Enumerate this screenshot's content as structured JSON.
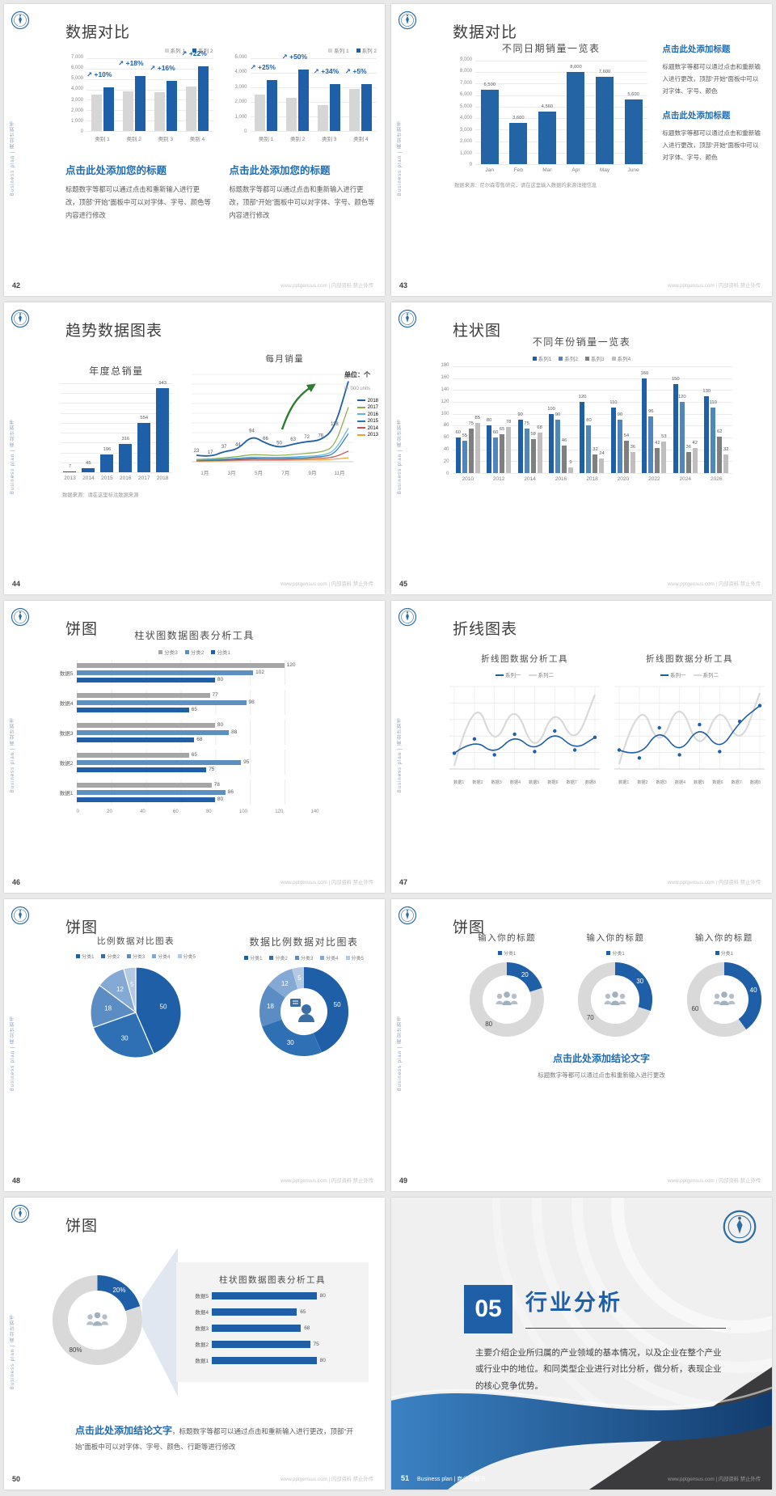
{
  "page_bg": "#e9e9e9",
  "accent_blue": "#1f5fa8",
  "footer_url": "www.pptgensus.com | 内部资料 禁止外传",
  "sidebar_text": "Business plan | 商业计划书",
  "slides": [
    {
      "page": "42",
      "title": "数据对比",
      "charts": [
        {
          "legend": [
            "系列 1",
            "系列 2"
          ],
          "yticks": [
            "7,000",
            "6,000",
            "5,000",
            "4,000",
            "3,000",
            "2,000",
            "1,000",
            "0"
          ],
          "ymax": 7000,
          "categories": [
            "类别 1",
            "类别 2",
            "类别 3",
            "类别 4"
          ],
          "percents": [
            "+10%",
            "+18%",
            "+16%",
            "+22%"
          ],
          "series": [
            {
              "name": "系列 1",
              "color": "#d6d6d6",
              "values": [
                3500,
                3800,
                3700,
                4300
              ]
            },
            {
              "name": "系列 2",
              "color": "#1f5fa8",
              "values": [
                4200,
                5300,
                4800,
                6200
              ]
            }
          ]
        },
        {
          "legend": [
            "系列 1",
            "系列 2"
          ],
          "yticks": [
            "5,000",
            "4,000",
            "3,000",
            "2,000",
            "1,000",
            "0"
          ],
          "ymax": 5000,
          "categories": [
            "类别 1",
            "类别 2",
            "类别 3",
            "类别 4"
          ],
          "percents": [
            "+25%",
            "+50%",
            "+34%",
            "+5%"
          ],
          "series": [
            {
              "name": "系列 1",
              "color": "#d6d6d6",
              "values": [
                2500,
                2300,
                1800,
                2900
              ]
            },
            {
              "name": "系列 2",
              "color": "#1f5fa8",
              "values": [
                3500,
                4200,
                3200,
                3200
              ]
            }
          ]
        }
      ],
      "blocks": [
        {
          "heading": "点击此处添加您的标题",
          "body": "标题数字等都可以通过点击和重新输入进行更改，顶部“开始”面板中可以对字体、字号、颜色等内容进行修改"
        },
        {
          "heading": "点击此处添加您的标题",
          "body": "标题数字等都可以通过点击和重新输入进行更改，顶部“开始”面板中可以对字体、字号、颜色等内容进行修改"
        }
      ]
    },
    {
      "page": "43",
      "title": "数据对比",
      "chart": {
        "title": "不同日期销量一览表",
        "yticks": [
          "9,000",
          "8,000",
          "7,000",
          "6,000",
          "5,000",
          "4,000",
          "3,000",
          "2,000",
          "1,000",
          "0"
        ],
        "ymax": 9000,
        "categories": [
          "Jan",
          "Feb",
          "Mar",
          "Apr",
          "May",
          "June"
        ],
        "labels": [
          "6,500",
          "3,600",
          "4,560",
          "8,000",
          "7,600",
          "5,600"
        ],
        "series": [
          {
            "name": "销量",
            "color": "#2464a5",
            "values": [
              6500,
              3600,
              4560,
              8000,
              7600,
              5600
            ]
          }
        ]
      },
      "footnote": "数据来源：尼尔森零售研究，请在这里输入数据的来源详细信息",
      "blocks": [
        {
          "heading": "点击此处添加标题",
          "body": "标题数字等都可以通过点击和重新输入进行更改，顶部“开始”面板中可以对字体、字号、颜色"
        },
        {
          "heading": "点击此处添加标题",
          "body": "标题数字等都可以通过点击和重新输入进行更改，顶部“开始”面板中可以对字体、字号、颜色"
        }
      ]
    },
    {
      "page": "44",
      "title": "趋势数据图表",
      "unit1": "单位：个",
      "unit2": "in '000 units",
      "footnote": "数据来源：请在这里标注数据来源",
      "left": {
        "title": "年度总销量",
        "ymax": 1000,
        "categories": [
          "2013",
          "2014",
          "2015",
          "2016",
          "2017",
          "2018"
        ],
        "labels": [
          "7",
          "45",
          "196",
          "316",
          "554",
          "943"
        ],
        "series": [
          {
            "name": "年度总销量",
            "color": "#1f5fa8",
            "values": [
              7,
              45,
              196,
              316,
              554,
              943
            ]
          }
        ]
      },
      "right": {
        "title": "每月销量",
        "ymax": 300,
        "xlabels": [
          "1月",
          "3月",
          "5月",
          "7月",
          "9月",
          "11月"
        ],
        "point_labels": [
          "23",
          "17",
          "37",
          "44",
          "94",
          "66",
          "50",
          "63",
          "72",
          "76",
          "118",
          "287"
        ],
        "arrow": true,
        "series": [
          {
            "name": "2018",
            "color": "#1f5fa8",
            "width": 1.8,
            "values": [
              23,
              17,
              37,
              44,
              94,
              66,
              50,
              63,
              72,
              76,
              118,
              287
            ]
          },
          {
            "name": "2017",
            "color": "#8aab4a",
            "values": [
              8,
              10,
              14,
              18,
              26,
              24,
              22,
              26,
              30,
              34,
              52,
              195
            ]
          },
          {
            "name": "2016",
            "color": "#5bb7d9",
            "values": [
              6,
              8,
              10,
              13,
              17,
              16,
              15,
              17,
              20,
              22,
              36,
              120
            ]
          },
          {
            "name": "2015",
            "color": "#2e75b6",
            "values": [
              5,
              6,
              8,
              10,
              13,
              12,
              12,
              13,
              15,
              17,
              26,
              100
            ]
          },
          {
            "name": "2014",
            "color": "#c0504d",
            "values": [
              3,
              4,
              5,
              7,
              9,
              8,
              8,
              9,
              10,
              12,
              16,
              38
            ]
          },
          {
            "name": "2013",
            "color": "#f0a030",
            "values": [
              2,
              3,
              3,
              4,
              5,
              5,
              5,
              6,
              6,
              7,
              9,
              14
            ]
          }
        ]
      }
    },
    {
      "page": "45",
      "title": "柱状图",
      "chart": {
        "title": "不同年份销量一览表",
        "legend": [
          "系列1",
          "系列2",
          "系列3",
          "系列4"
        ],
        "yticks": [
          "180",
          "160",
          "140",
          "120",
          "100",
          "80",
          "60",
          "40",
          "20",
          "0"
        ],
        "ymax": 180,
        "categories": [
          "2010",
          "2012",
          "2014",
          "2016",
          "2018",
          "2020",
          "2022",
          "2024",
          "2026"
        ],
        "series": [
          {
            "name": "系列1",
            "color": "#1f5fa8",
            "values": [
              60,
              80,
              90,
              100,
              120,
              110,
              160,
              150,
              130
            ]
          },
          {
            "name": "系列2",
            "color": "#4f86bb",
            "values": [
              55,
              60,
              75,
              90,
              80,
              90,
              96,
              120,
              110
            ]
          },
          {
            "name": "系列3",
            "color": "#7f7f7f",
            "values": [
              75,
              65,
              58,
              46,
              32,
              54,
              42,
              36,
              62
            ]
          },
          {
            "name": "系列4",
            "color": "#bfbfbf",
            "values": [
              85,
              78,
              68,
              9,
              24,
              36,
              53,
              42,
              32
            ]
          }
        ]
      }
    },
    {
      "page": "46",
      "title": "饼图",
      "chart": {
        "title": "柱状图数据图表分析工具",
        "xmax": 140,
        "xticks": [
          "0",
          "20",
          "40",
          "60",
          "80",
          "100",
          "120",
          "140"
        ],
        "legend": [
          {
            "label": "分类3",
            "color": "#a6a6a6"
          },
          {
            "label": "分类2",
            "color": "#5d8fc0"
          },
          {
            "label": "分类1",
            "color": "#1f5fa8"
          }
        ],
        "rows": [
          "数据5",
          "数据4",
          "数据3",
          "数据2",
          "数据1"
        ],
        "series": {
          "分类3": [
            120,
            77,
            80,
            65,
            78
          ],
          "分类2": [
            102,
            98,
            88,
            95,
            86
          ],
          "分类1": [
            80,
            65,
            68,
            75,
            80
          ]
        }
      }
    },
    {
      "page": "47",
      "title": "折线图表",
      "charts": [
        {
          "title": "折线图数据分析工具",
          "legend": [
            "系列一",
            "系列二"
          ],
          "ymax": 250,
          "yticks": [
            "250",
            "200",
            "150",
            "100",
            "50",
            "0"
          ],
          "xlabels": [
            "数据1",
            "数据2",
            "数据3",
            "数据4",
            "数据5",
            "数据6",
            "数据7",
            "数据8"
          ],
          "series": [
            {
              "name": "系列一",
              "color": "#1f5fa8",
              "marker": true,
              "width": 1.6,
              "values": [
                50,
                95,
                45,
                110,
                55,
                120,
                60,
                100
              ]
            },
            {
              "name": "系列二",
              "color": "#d9d9d9",
              "width": 2.2,
              "values": [
                10,
                245,
                60,
                215,
                40,
                200,
                70,
                235
              ]
            }
          ]
        },
        {
          "title": "折线图数据分析工具",
          "legend": [
            "系列一",
            "系列二"
          ],
          "ymax": 250,
          "yticks": [
            "250",
            "200",
            "150",
            "100",
            "50",
            "0"
          ],
          "xlabels": [
            "数据1",
            "数据2",
            "数据3",
            "数据4",
            "数据5",
            "数据6",
            "数据7",
            "数据8"
          ],
          "series": [
            {
              "name": "系列一",
              "color": "#1f5fa8",
              "marker": true,
              "width": 1.6,
              "values": [
                60,
                35,
                130,
                45,
                140,
                55,
                150,
                200
              ]
            },
            {
              "name": "系列二",
              "color": "#d9d9d9",
              "width": 2.2,
              "values": [
                15,
                235,
                55,
                225,
                45,
                210,
                65,
                240
              ]
            }
          ]
        }
      ]
    },
    {
      "page": "48",
      "title": "饼图",
      "pie": {
        "title": "比例数据对比图表",
        "legend": [
          "分类1",
          "分类2",
          "分类3",
          "分类4",
          "分类5"
        ],
        "values": [
          50,
          30,
          18,
          12,
          5
        ],
        "colors": [
          "#1f5fa8",
          "#2f6fb3",
          "#5b8cc4",
          "#83a9d4",
          "#b3c9e4"
        ]
      },
      "donut": {
        "title": "数据比例数据对比图表",
        "legend": [
          "分类1",
          "分类2",
          "分类3",
          "分类4",
          "分类5"
        ],
        "values": [
          50,
          30,
          18,
          12,
          5
        ],
        "labels": [
          "50",
          "30",
          "18",
          "12",
          "5"
        ],
        "colors": [
          "#1f5fa8",
          "#2f6fb3",
          "#5b8cc4",
          "#83a9d4",
          "#b3c9e4"
        ],
        "icon": "presenter"
      }
    },
    {
      "page": "49",
      "title": "饼图",
      "donuts": [
        {
          "title": "输入你的标题",
          "legend": [
            "分类1"
          ],
          "legend_colors": [
            "#1f5fa8"
          ],
          "values": [
            20,
            80
          ],
          "labels": [
            "20",
            "80"
          ],
          "label_colors": [
            "#fff",
            "#404040"
          ],
          "colors": [
            "#1f5fa8",
            "#d9d9d9"
          ],
          "icon": "people"
        },
        {
          "title": "输入你的标题",
          "legend": [
            "分类1"
          ],
          "legend_colors": [
            "#1f5fa8"
          ],
          "values": [
            30,
            70
          ],
          "labels": [
            "30",
            "70"
          ],
          "label_colors": [
            "#fff",
            "#404040"
          ],
          "colors": [
            "#1f5fa8",
            "#d9d9d9"
          ],
          "icon": "people"
        },
        {
          "title": "输入你的标题",
          "legend": [
            "分类1"
          ],
          "legend_colors": [
            "#1f5fa8"
          ],
          "values": [
            40,
            60
          ],
          "labels": [
            "40",
            "60"
          ],
          "label_colors": [
            "#fff",
            "#404040"
          ],
          "colors": [
            "#1f5fa8",
            "#d9d9d9"
          ],
          "icon": "people"
        }
      ],
      "conclusion": "点击此处添加结论文字",
      "conclusion_sub": "标题数字等都可以通过点击和重新输入进行更改"
    },
    {
      "page": "50",
      "title": "饼图",
      "donut": {
        "values": [
          20,
          80
        ],
        "labels": [
          "20%",
          "80%"
        ],
        "label_colors": [
          "#fff",
          "#404040"
        ],
        "colors": [
          "#1f5fa8",
          "#d9d9d9"
        ],
        "icon": "people"
      },
      "panel": {
        "title": "柱状图数据图表分析工具",
        "max": 100,
        "rows": [
          [
            "数据5",
            80
          ],
          [
            "数据4",
            65
          ],
          [
            "数据3",
            68
          ],
          [
            "数据2",
            75
          ],
          [
            "数据1",
            80
          ]
        ]
      },
      "conclusion_lead": "点击此处添加结论文字",
      "conclusion_rest": "，标题数字等都可以通过点击和重新输入进行更改，顶部“开始”面板中可以对字体、字号、颜色、行距等进行修改"
    },
    {
      "page": "51",
      "number": "05",
      "title": "行业分析",
      "body": "主要介绍企业所归属的产业领域的基本情况，以及企业在整个产业或行业中的地位。和同类型企业进行对比分析，做分析，表现企业的核心竞争优势。",
      "footer_left": "Business plan | 商业计划书"
    }
  ]
}
